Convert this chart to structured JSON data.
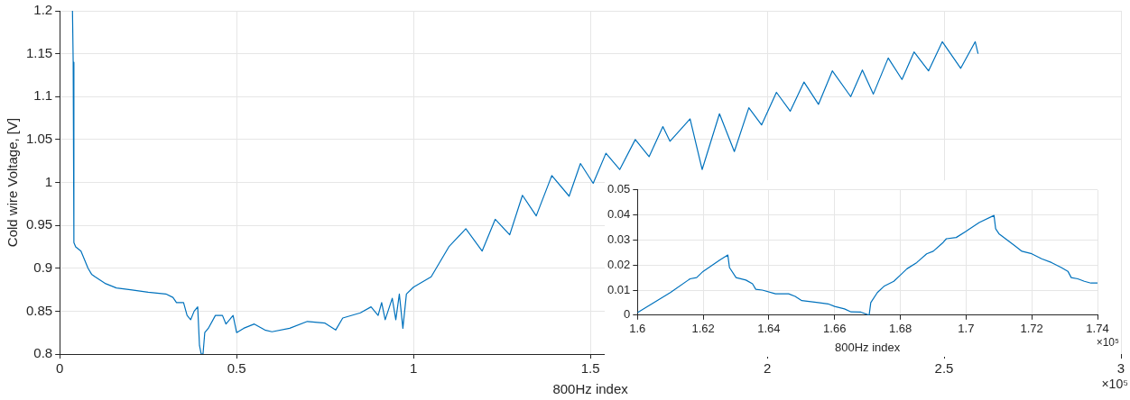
{
  "chart_data": [
    {
      "type": "line",
      "xlabel": "800Hz index",
      "ylabel": "Cold wire Voltage, [V]",
      "annotations": [
        "×10⁵"
      ],
      "xlim": [
        0,
        3
      ],
      "xticks": [
        0,
        0.5,
        1,
        1.5,
        2,
        2.5,
        3
      ],
      "ylim": [
        0.8,
        1.2
      ],
      "yticks": [
        0.8,
        0.85,
        0.9,
        0.95,
        1,
        1.05,
        1.1,
        1.15,
        1.2
      ],
      "grid": true,
      "legend": false,
      "series": [
        {
          "color": "#0072bd",
          "x": [
            0.036,
            0.038,
            0.04,
            0.045,
            0.06,
            0.07,
            0.08,
            0.09,
            0.1,
            0.13,
            0.16,
            0.2,
            0.25,
            0.3,
            0.32,
            0.33,
            0.35,
            0.36,
            0.37,
            0.38,
            0.39,
            0.395,
            0.4,
            0.405,
            0.41,
            0.42,
            0.44,
            0.46,
            0.47,
            0.49,
            0.5,
            0.52,
            0.55,
            0.58,
            0.6,
            0.65,
            0.7,
            0.75,
            0.78,
            0.8,
            0.85,
            0.88,
            0.9,
            0.91,
            0.92,
            0.94,
            0.95,
            0.96,
            0.97,
            0.98,
            1.0,
            1.05,
            1.1,
            1.148,
            1.194,
            1.231,
            1.272,
            1.308,
            1.347,
            1.391,
            1.44,
            1.472,
            1.508,
            1.544,
            1.583,
            1.627,
            1.666,
            1.705,
            1.725,
            1.782,
            1.816,
            1.865,
            1.907,
            1.948,
            1.984,
            2.026,
            2.065,
            2.104,
            2.145,
            2.184,
            2.236,
            2.269,
            2.3,
            2.342,
            2.381,
            2.415,
            2.456,
            2.495,
            2.547,
            2.588,
            2.596
          ],
          "values": [
            1.2,
            1.14,
            0.93,
            0.925,
            0.92,
            0.91,
            0.9,
            0.893,
            0.89,
            0.882,
            0.877,
            0.875,
            0.872,
            0.87,
            0.866,
            0.86,
            0.86,
            0.845,
            0.84,
            0.85,
            0.855,
            0.81,
            0.8,
            0.8,
            0.825,
            0.83,
            0.845,
            0.845,
            0.835,
            0.845,
            0.825,
            0.83,
            0.835,
            0.828,
            0.826,
            0.83,
            0.838,
            0.836,
            0.828,
            0.842,
            0.848,
            0.855,
            0.845,
            0.86,
            0.84,
            0.865,
            0.84,
            0.87,
            0.83,
            0.87,
            0.878,
            0.89,
            0.925,
            0.946,
            0.92,
            0.957,
            0.939,
            0.985,
            0.961,
            1.008,
            0.984,
            1.022,
            0.999,
            1.034,
            1.015,
            1.05,
            1.03,
            1.065,
            1.048,
            1.074,
            1.015,
            1.08,
            1.036,
            1.087,
            1.067,
            1.105,
            1.083,
            1.117,
            1.091,
            1.13,
            1.1,
            1.131,
            1.103,
            1.145,
            1.12,
            1.152,
            1.13,
            1.164,
            1.133,
            1.164,
            1.15
          ]
        }
      ]
    },
    {
      "type": "line",
      "xlabel": "800Hz index",
      "annotations": [
        "×10⁵"
      ],
      "xlim": [
        1.6,
        1.74
      ],
      "xticks": [
        1.6,
        1.62,
        1.64,
        1.66,
        1.68,
        1.7,
        1.72,
        1.74
      ],
      "ylim": [
        0,
        0.05
      ],
      "yticks": [
        0,
        0.01,
        0.02,
        0.03,
        0.04,
        0.05
      ],
      "grid": true,
      "legend": false,
      "series": [
        {
          "color": "#0072bd",
          "x": [
            1.6,
            1.61,
            1.616,
            1.618,
            1.62,
            1.625,
            1.6275,
            1.628,
            1.63,
            1.633,
            1.635,
            1.636,
            1.638,
            1.642,
            1.646,
            1.648,
            1.65,
            1.655,
            1.658,
            1.66,
            1.663,
            1.665,
            1.668,
            1.6705,
            1.671,
            1.673,
            1.675,
            1.678,
            1.68,
            1.682,
            1.685,
            1.688,
            1.69,
            1.693,
            1.694,
            1.697,
            1.7,
            1.704,
            1.7085,
            1.709,
            1.71,
            1.713,
            1.715,
            1.717,
            1.72,
            1.723,
            1.726,
            1.729,
            1.731,
            1.732,
            1.734,
            1.736,
            1.738,
            1.74
          ],
          "values": [
            0.001,
            0.009,
            0.0145,
            0.015,
            0.0175,
            0.022,
            0.024,
            0.019,
            0.015,
            0.014,
            0.0125,
            0.0103,
            0.01,
            0.0085,
            0.0085,
            0.0075,
            0.0058,
            0.005,
            0.0045,
            0.0035,
            0.0025,
            0.0013,
            0.0012,
            0.0,
            0.005,
            0.009,
            0.0115,
            0.0135,
            0.016,
            0.0185,
            0.021,
            0.0245,
            0.0255,
            0.029,
            0.0305,
            0.031,
            0.0335,
            0.037,
            0.0398,
            0.0345,
            0.0325,
            0.0295,
            0.0275,
            0.0255,
            0.0245,
            0.0225,
            0.021,
            0.019,
            0.0175,
            0.015,
            0.0145,
            0.0135,
            0.0128,
            0.0128
          ]
        }
      ]
    }
  ]
}
